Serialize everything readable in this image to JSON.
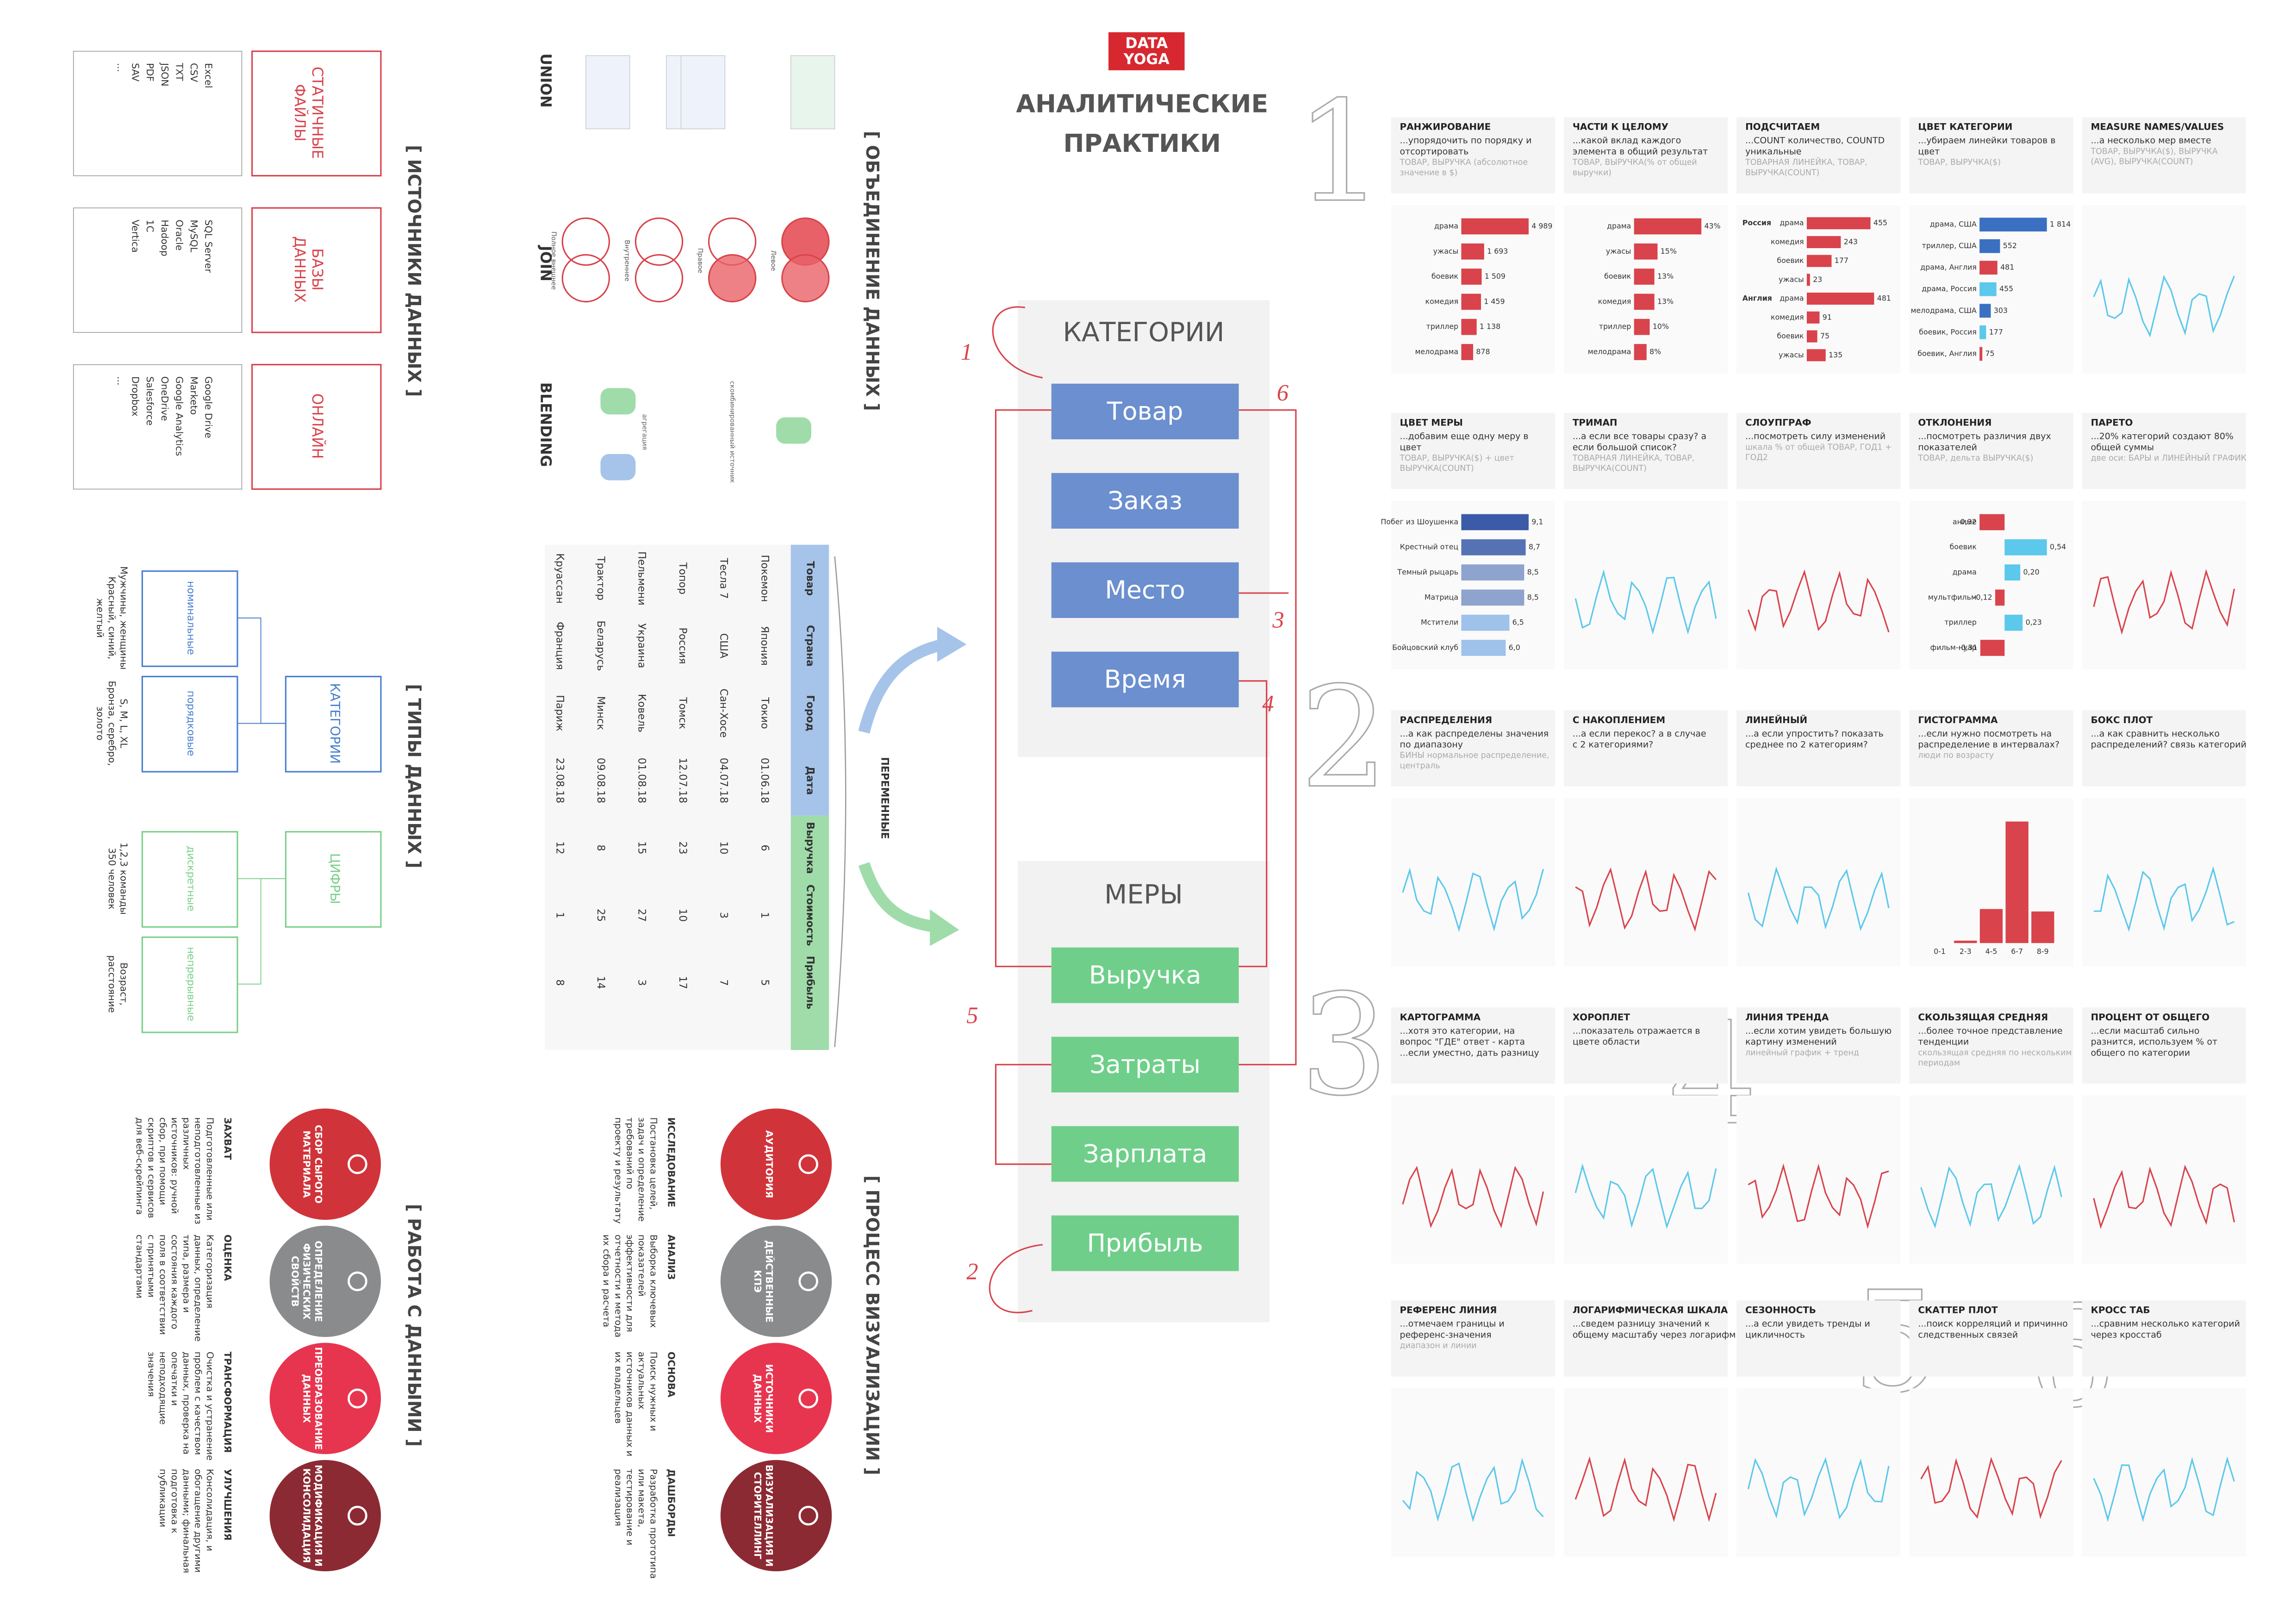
{
  "header": {
    "logo_top": "DATA",
    "logo_bottom": "YOGA",
    "title_line1": "АНАЛИТИЧЕСКИЕ",
    "title_line2": "ПРАКТИКИ"
  },
  "sources": {
    "title": "[ ИСТОЧНИКИ ДАННЫХ ]",
    "groups": [
      {
        "label": "СТАТИЧНЫЕ ФАЙЛЫ",
        "items": [
          "Excel",
          "CSV",
          "TXT",
          "JSON",
          "PDF",
          "SAV",
          "..."
        ]
      },
      {
        "label": "БАЗЫ ДАННЫХ",
        "items": [
          "SQL Server",
          "MySQL",
          "Oracle",
          "Hadoop",
          "1C",
          "Vertica"
        ]
      },
      {
        "label": "ОНЛАЙН",
        "items": [
          "Google Drive",
          "Marketo",
          "Google Analytics",
          "OneDrive",
          "Salesforce",
          "Dropbox",
          "..."
        ]
      }
    ]
  },
  "types": {
    "title": "[ ТИПЫ ДАННЫХ ]",
    "categories": {
      "label": "КАТЕГОРИИ",
      "kinds": [
        {
          "label": "номинальные",
          "example": "Мужчины, женщины Красный, синий, желтый"
        },
        {
          "label": "порядковые",
          "example": "S, M, L, XL Бронза, серебро, золото"
        }
      ]
    },
    "numbers": {
      "label": "ЦИФРЫ",
      "kinds": [
        {
          "label": "дискретные",
          "example": "1,2,3 команды 350 человек"
        },
        {
          "label": "непрерывные",
          "example": "Возраст, расстояние"
        }
      ]
    }
  },
  "work": {
    "title": "[ РАБОТА С ДАННЫМИ ]",
    "steps": [
      {
        "circle": "СБОР СЫРОГО МАТЕРИАЛА",
        "head": "ЗАХВАТ",
        "text": "Подготовленные или неподготовленные из различных источников: ручной сбор, при помощи скриптов и сервисов для веб-скрейпинга"
      },
      {
        "circle": "ОПРЕДЕЛЕНИЕ ФИЗИЧЕСКИХ СВОЙСТВ",
        "head": "ОЦЕНКА",
        "text": "Категоризация данных, определение типа, размера и состояния каждого поля в соответствии с принятыми стандартами"
      },
      {
        "circle": "ПРЕОБРАЗОВАНИЕ ДАННЫХ",
        "head": "ТРАНСФОРМАЦИЯ",
        "text": "Очистка и устранение проблем с качеством данных, проверка на опечатки и неподходящие значения"
      },
      {
        "circle": "МОДИФИКАЦИЯ И КОНСОЛИДАЦИЯ",
        "head": "УЛУЧШЕНИЯ",
        "text": "Консолидация, и обогащение другими данными; финальная подготовка к публикации"
      }
    ]
  },
  "merge": {
    "title": "[ ОБЪЕДИНЕНИЕ ДАННЫХ ]",
    "union": "UNION",
    "join": "JOIN",
    "blending": "BLENDING",
    "join_kinds": [
      "Левое",
      "Правое",
      "Внутреннее",
      "Полное внешнее"
    ],
    "blend_notes": [
      "агрегация",
      "скомбинированный источник"
    ]
  },
  "table": {
    "columns": [
      "Товар",
      "Страна",
      "Город",
      "Дата",
      "Выручка",
      "Стоимость",
      "Прибыль"
    ],
    "rows": [
      [
        "Покемон",
        "Япония",
        "Токио",
        "01.06.18",
        "6",
        "1",
        "5"
      ],
      [
        "Тесла 7",
        "США",
        "Сан-Хосе",
        "04.07.18",
        "10",
        "3",
        "7"
      ],
      [
        "Топор",
        "Россия",
        "Томск",
        "12.07.18",
        "23",
        "10",
        "17"
      ],
      [
        "Пельмени",
        "Украина",
        "Ковель",
        "01.08.18",
        "15",
        "27",
        "3"
      ],
      [
        "Трактор",
        "Беларусь",
        "Минск",
        "09.08.18",
        "8",
        "25",
        "14"
      ],
      [
        "Круассан",
        "Франция",
        "Париж",
        "23.08.18",
        "12",
        "1",
        "8"
      ]
    ],
    "variables": "ПЕРЕМЕННЫЕ"
  },
  "process": {
    "title": "[ ПРОЦЕСС ВИЗУАЛИЗАЦИИ ]",
    "steps": [
      {
        "circle": "АУДИТОРИЯ",
        "head": "ИССЛЕДОВАНИЕ",
        "text": "Постановка целей, задач и определение требований по проекту и результату"
      },
      {
        "circle": "ДЕЙСТВЕННЫЕ КПЭ",
        "head": "АНАЛИЗ",
        "text": "Выборка ключевых показателей эффективности для отчетности и метода их сбора и расчета"
      },
      {
        "circle": "ИСТОЧНИКИ ДАННЫХ",
        "head": "ОСНОВА",
        "text": "Поиск нужных и актуальных источников данных и их владельцев"
      },
      {
        "circle": "ВИЗУАЛИЗАЦИЯ И СТОРИТЕЛЛИНГ",
        "head": "ДАШБОРДЫ",
        "text": "Разработка прототипа или макета, тестирование и реализация"
      }
    ]
  },
  "center": {
    "categories": {
      "title": "КАТЕГОРИИ",
      "items": [
        "Товар",
        "Заказ",
        "Место",
        "Время"
      ]
    },
    "measures": {
      "title": "МЕРЫ",
      "items": [
        "Выручка",
        "Затраты",
        "Зарплата",
        "Прибыль"
      ]
    },
    "marks": [
      "1",
      "2",
      "3",
      "4",
      "5",
      "6"
    ]
  },
  "practices": {
    "numbers": [
      "1",
      "2",
      "3",
      "4",
      "5",
      "6"
    ],
    "cards": [
      {
        "title": "РАНЖИРОВАНИЕ",
        "text": "...упорядочить по порядку и отсортировать",
        "hint": "ТОВАР, ВЫРУЧКА (абсолютное значение в $)",
        "chart": {
          "type": "bar",
          "categories": [
            "драма",
            "ужасы",
            "боевик",
            "комедия",
            "триллер",
            "мелодрама"
          ],
          "values": [
            4989,
            1693,
            1509,
            1459,
            1138,
            878
          ],
          "value_labels": [
            "4 989",
            "1 693",
            "1 509",
            "1 459",
            "1 138",
            "878"
          ],
          "color": "#d9434b"
        }
      },
      {
        "title": "ЧАСТИ К ЦЕЛОМУ",
        "text": "...какой вклад каждого элемента в общий результат",
        "hint": "ТОВАР, ВЫРУЧКА(% от общей выручки)",
        "chart": {
          "type": "bar",
          "categories": [
            "драма",
            "ужасы",
            "боевик",
            "комедия",
            "триллер",
            "мелодрама"
          ],
          "values": [
            43,
            15,
            13,
            13,
            10,
            8
          ],
          "value_labels": [
            "43%",
            "15%",
            "13%",
            "13%",
            "10%",
            "8%"
          ],
          "color": "#d9434b"
        }
      },
      {
        "title": "ПОДСЧИТАЕМ",
        "text": "...COUNT количество, COUNTD уникальные",
        "hint": "ТОВАРНАЯ ЛИНЕЙКА, ТОВАР, ВЫРУЧКА(COUNT)",
        "chart": {
          "type": "bar",
          "color": "#d9434b",
          "groups": [
            {
              "name": "Россия",
              "categories": [
                "драма",
                "комедия",
                "боевик",
                "ужасы"
              ],
              "values": [
                455,
                243,
                177,
                23
              ]
            },
            {
              "name": "Англия",
              "categories": [
                "драма",
                "комедия",
                "боевик",
                "ужасы"
              ],
              "values": [
                481,
                91,
                75,
                135
              ]
            }
          ]
        }
      },
      {
        "title": "ЦВЕТ КАТЕГОРИИ",
        "text": "...убираем линейки товаров в цвет",
        "hint": "ТОВАР, ВЫРУЧКА($)",
        "chart": {
          "type": "bar",
          "categories": [
            "драма, США",
            "триллер, США",
            "драма, Англия",
            "драма, Россия",
            "мелодрама, США",
            "боевик, Россия",
            "боевик, Англия"
          ],
          "values": [
            1814,
            552,
            481,
            455,
            303,
            177,
            75
          ],
          "value_labels": [
            "1 814",
            "552",
            "481",
            "455",
            "303",
            "177",
            "75"
          ],
          "colors": [
            "#3b6fc2",
            "#3b6fc2",
            "#d9434b",
            "#5bc8ec",
            "#3b6fc2",
            "#5bc8ec",
            "#d9434b"
          ]
        }
      },
      {
        "title": "MEASURE NAMES/VALUES",
        "text": "...а несколько мер вместе",
        "hint": "ТОВАР, ВЫРУЧКА($), ВЫРУЧКА (AVG), ВЫРУЧКА(COUNT)"
      },
      {
        "title": "ЦВЕТ МЕРЫ",
        "text": "...добавим еще одну меру в цвет",
        "hint": "ТОВАР, ВЫРУЧКА($) + цвет ВЫРУЧКА(COUNT)",
        "chart": {
          "type": "bar",
          "categories": [
            "Побег из Шоушенка",
            "Крестный отец",
            "Темный рыцарь",
            "Матрица",
            "Мстители",
            "Бойцовский клуб"
          ],
          "values": [
            9.1,
            8.7,
            8.5,
            8.5,
            6.5,
            6.0
          ],
          "value_labels": [
            "9,1",
            "8,7",
            "8,5",
            "8,5",
            "6,5",
            "6,0"
          ],
          "colors": [
            "#3b5ba8",
            "#5572b5",
            "#8fa3cf",
            "#8fa3cf",
            "#9ec2ea",
            "#9ec2ea"
          ]
        }
      },
      {
        "title": "ТРИМАП",
        "text": "...а если все товары сразу? а если большой список?",
        "hint": "ТОВАРНАЯ ЛИНЕЙКА, ТОВАР, ВЫРУЧКА(COUNT)"
      },
      {
        "title": "СЛОУПГРАФ",
        "text": "...посмотреть силу изменений",
        "hint": "шкала % от общей ТОВАР, ГОД1 + ГОД2"
      },
      {
        "title": "ОТКЛОНЕНИЯ",
        "text": "...посмотреть различия двух показателей",
        "hint": "ТОВАР, дельта ВЫРУЧКА($)",
        "chart": {
          "type": "bar",
          "categories": [
            "аниме",
            "боевик",
            "драма",
            "мультфильм",
            "триллер",
            "фильм-нуар"
          ],
          "values": [
            -0.32,
            0.54,
            0.2,
            -0.12,
            0.23,
            -0.31
          ],
          "value_labels": [
            "-0,32",
            "0,54",
            "0,20",
            "-0,12",
            "0,23",
            "-0,31"
          ],
          "colors": [
            "#d9434b",
            "#5bc8ec",
            "#5bc8ec",
            "#d9434b",
            "#5bc8ec",
            "#d9434b"
          ]
        }
      },
      {
        "title": "ПАРЕТО",
        "text": "...20% категорий создают 80% общей суммы",
        "hint": "две оси: БАРЫ и ЛИНЕЙНЫЙ ГРАФИК"
      },
      {
        "title": "РАСПРЕДЕЛЕНИЯ",
        "text": "...а как распределены значения по диапазону",
        "hint": "БИНЫ нормальное распределение, централь"
      },
      {
        "title": "С НАКОПЛЕНИЕМ",
        "text": "...а если перекос? а в случае с 2 категориями?"
      },
      {
        "title": "ЛИНЕЙНЫЙ",
        "text": "...а если упростить? показать среднее по 2 категориям?"
      },
      {
        "title": "ГИСТОГРАММА",
        "text": "...если нужно посмотреть на распределение в интервалах?",
        "hint": "люди по возрасту",
        "chart": {
          "type": "column",
          "categories": [
            "0-1",
            "2-3",
            "4-5",
            "6-7",
            "8-9"
          ],
          "values": [
            0,
            2,
            28,
            100,
            26
          ],
          "color": "#d9434b"
        }
      },
      {
        "title": "БОКС ПЛОТ",
        "text": "...а как сравнить несколько распределений? связь категорий"
      },
      {
        "title": "КАРТОГРАММА",
        "text": "...хотя это категории, на вопрос \"ГДЕ\" ответ - карта ...если уместно, дать разницу"
      },
      {
        "title": "ХОРОПЛЕТ",
        "text": "...показатель отражается в цвете области"
      },
      {
        "title": "ЛИНИЯ ТРЕНДА",
        "text": "...если хотим увидеть большую картину изменений",
        "hint": "линейный график + тренд"
      },
      {
        "title": "СКОЛЬЗЯЩАЯ СРЕДНЯЯ",
        "text": "...более точное представление тенденции",
        "hint": "скользящая средняя по нескольким периодам"
      },
      {
        "title": "ПРОЦЕНТ ОТ ОБЩЕГО",
        "text": "...если масштаб сильно разнится, используем % от общего по категории"
      },
      {
        "title": "РЕФЕРЕНС ЛИНИЯ",
        "text": "...отмечаем границы и референс-значения",
        "hint": "диапазон и линии"
      },
      {
        "title": "ЛОГАРИФМИЧЕСКАЯ ШКАЛА",
        "text": "...сведем разницу значений к общему масштабу через логарифм"
      },
      {
        "title": "СЕЗОННОСТЬ",
        "text": "...а если увидеть тренды и цикличность"
      },
      {
        "title": "СКАТТЕР ПЛОТ",
        "text": "...поиск корреляций и причинно следственных связей"
      },
      {
        "title": "КРОСС ТАБ",
        "text": "...сравним несколько категорий через кросстаб"
      }
    ]
  }
}
